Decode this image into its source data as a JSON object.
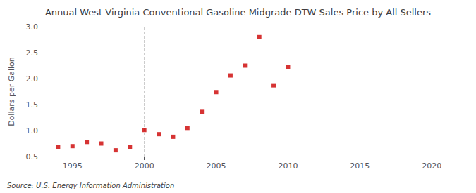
{
  "chart_data": {
    "type": "scatter",
    "title": "Annual West Virginia Conventional Gasoline Midgrade DTW Sales Price by All Sellers",
    "ylabel": "Dollars per Gallon",
    "annotation": "Source: U.S. Energy Information Administration",
    "x": [
      1994,
      1995,
      1996,
      1997,
      1998,
      1999,
      2000,
      2001,
      2002,
      2003,
      2004,
      2005,
      2006,
      2007,
      2008,
      2009,
      2010
    ],
    "values": [
      0.68,
      0.7,
      0.78,
      0.75,
      0.62,
      0.68,
      1.01,
      0.93,
      0.88,
      1.05,
      1.36,
      1.74,
      2.06,
      2.25,
      2.8,
      1.87,
      2.23
    ],
    "color": "#cc0000",
    "marker": "square",
    "xlim": [
      1993,
      2022
    ],
    "ylim": [
      0.5,
      3.0
    ],
    "xticks": [
      1995,
      2000,
      2005,
      2010,
      2015,
      2020
    ],
    "yticks": [
      0.5,
      {
        "value": 1.0,
        "label": "1.0"
      },
      1.5,
      {
        "value": 2.0,
        "label": "2.0"
      },
      2.5,
      {
        "value": 3.0,
        "label": "3.0"
      }
    ],
    "grid": true
  }
}
